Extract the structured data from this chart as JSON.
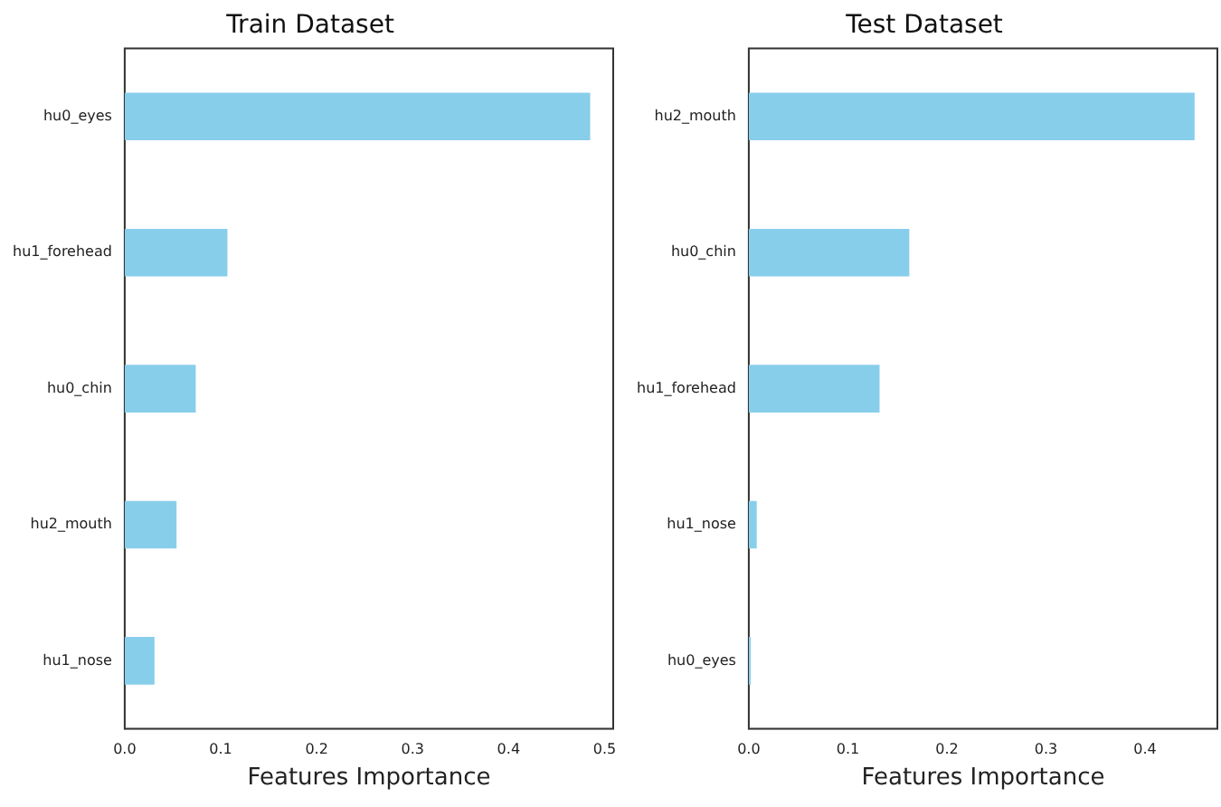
{
  "chart_data": [
    {
      "type": "bar",
      "orientation": "horizontal",
      "title": "Train Dataset",
      "xlabel": "Features Importance",
      "categories": [
        "hu0_eyes",
        "hu1_forehead",
        "hu0_chin",
        "hu2_mouth",
        "hu1_nose"
      ],
      "values": [
        0.485,
        0.107,
        0.074,
        0.054,
        0.031
      ],
      "color": "#87ceeb",
      "xlim": [
        0,
        0.509
      ],
      "xticks": [
        {
          "value": 0,
          "label": "0.0"
        },
        {
          "value": 0.1,
          "label": "0.1"
        },
        {
          "value": 0.2,
          "label": "0.2"
        },
        {
          "value": 0.3,
          "label": "0.3"
        },
        {
          "value": 0.4,
          "label": "0.4"
        },
        {
          "value": 0.5,
          "label": "0.5"
        }
      ],
      "grid": false,
      "legend": false
    },
    {
      "type": "bar",
      "orientation": "horizontal",
      "title": "Test Dataset",
      "xlabel": "Features Importance",
      "categories": [
        "hu2_mouth",
        "hu0_chin",
        "hu1_forehead",
        "hu1_nose",
        "hu0_eyes"
      ],
      "values": [
        0.45,
        0.162,
        0.132,
        0.008,
        0.002
      ],
      "color": "#87ceeb",
      "xlim": [
        0,
        0.473
      ],
      "xticks": [
        {
          "value": 0,
          "label": "0.0"
        },
        {
          "value": 0.1,
          "label": "0.1"
        },
        {
          "value": 0.2,
          "label": "0.2"
        },
        {
          "value": 0.3,
          "label": "0.3"
        },
        {
          "value": 0.4,
          "label": "0.4"
        }
      ],
      "grid": false,
      "legend": false
    }
  ]
}
